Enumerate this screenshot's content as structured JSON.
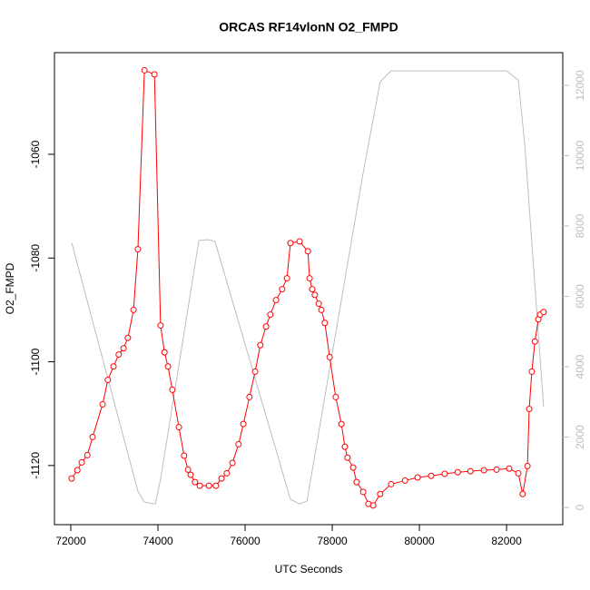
{
  "chart_data": {
    "type": "line",
    "title": "ORCAS RF14vlonN O2_FMPD",
    "x_label": "UTC Seconds",
    "y_label": "O2_FMPD",
    "xlim": [
      71625,
      83290
    ],
    "ylim": [
      -1131.4,
      -1040.4
    ],
    "y2lim": [
      -490,
      12930
    ],
    "xticks": [
      72000,
      74000,
      76000,
      78000,
      80000,
      82000
    ],
    "yticks": [
      -1120,
      -1100,
      -1080,
      -1060
    ],
    "y2ticks": [
      0,
      2000,
      4000,
      6000,
      8000,
      10000,
      12000
    ],
    "y2_tick_color": "#bebebe",
    "series": [
      {
        "color": "#ff0000",
        "markers": true,
        "x": [
          72020,
          72150,
          72250,
          72380,
          72500,
          72730,
          72850,
          72980,
          73100,
          73210,
          73310,
          73440,
          73540,
          73690,
          73920,
          74060,
          74150,
          74230,
          74330,
          74480,
          74600,
          74690,
          74750,
          74850,
          74960,
          75170,
          75330,
          75460,
          75580,
          75710,
          75850,
          75960,
          76100,
          76230,
          76350,
          76480,
          76580,
          76710,
          76850,
          76960,
          77040,
          77250,
          77440,
          77480,
          77540,
          77600,
          77690,
          77750,
          77830,
          77940,
          78080,
          78210,
          78290,
          78350,
          78480,
          78560,
          78710,
          78830,
          78940,
          79100,
          79350,
          79670,
          79960,
          80270,
          80580,
          80880,
          81170,
          81480,
          81770,
          82060,
          82270,
          82370,
          82480,
          82520,
          82580,
          82650,
          82730,
          82770,
          82850
        ],
        "values": [
          -1122.5,
          -1120.9,
          -1119.4,
          -1118.0,
          -1114.5,
          -1108.2,
          -1103.5,
          -1100.9,
          -1098.6,
          -1097.4,
          -1095.4,
          -1090.0,
          -1078.3,
          -1043.8,
          -1044.6,
          -1093.0,
          -1098.2,
          -1100.9,
          -1105.4,
          -1112.6,
          -1118.1,
          -1120.8,
          -1121.8,
          -1123.2,
          -1123.9,
          -1123.9,
          -1123.9,
          -1122.5,
          -1121.5,
          -1119.5,
          -1115.9,
          -1112.0,
          -1106.8,
          -1101.9,
          -1096.8,
          -1093.2,
          -1090.9,
          -1088.1,
          -1086.0,
          -1083.9,
          -1077.1,
          -1076.8,
          -1078.7,
          -1083.9,
          -1086.0,
          -1087.1,
          -1088.8,
          -1090.0,
          -1092.5,
          -1099.1,
          -1106.8,
          -1112.0,
          -1116.4,
          -1118.5,
          -1120.4,
          -1123.2,
          -1125.1,
          -1127.4,
          -1127.7,
          -1125.5,
          -1123.6,
          -1122.9,
          -1122.3,
          -1122.0,
          -1121.6,
          -1121.3,
          -1121.1,
          -1120.9,
          -1120.8,
          -1120.6,
          -1121.5,
          -1125.5,
          -1120.1,
          -1109.1,
          -1101.9,
          -1096.1,
          -1091.8,
          -1090.9,
          -1090.4
        ]
      },
      {
        "color": "#bebebe",
        "axis": "y2",
        "markers": false,
        "x": [
          72020,
          73540,
          73690,
          73940,
          74060,
          74940,
          75150,
          75310,
          77040,
          77250,
          77420,
          78710,
          79100,
          79350,
          81620,
          82000,
          82270,
          82420,
          82850
        ],
        "values": [
          7530,
          460,
          150,
          100,
          800,
          7590,
          7610,
          7560,
          230,
          100,
          180,
          9520,
          12100,
          12410,
          12410,
          12410,
          12150,
          10290,
          2860
        ]
      }
    ]
  }
}
